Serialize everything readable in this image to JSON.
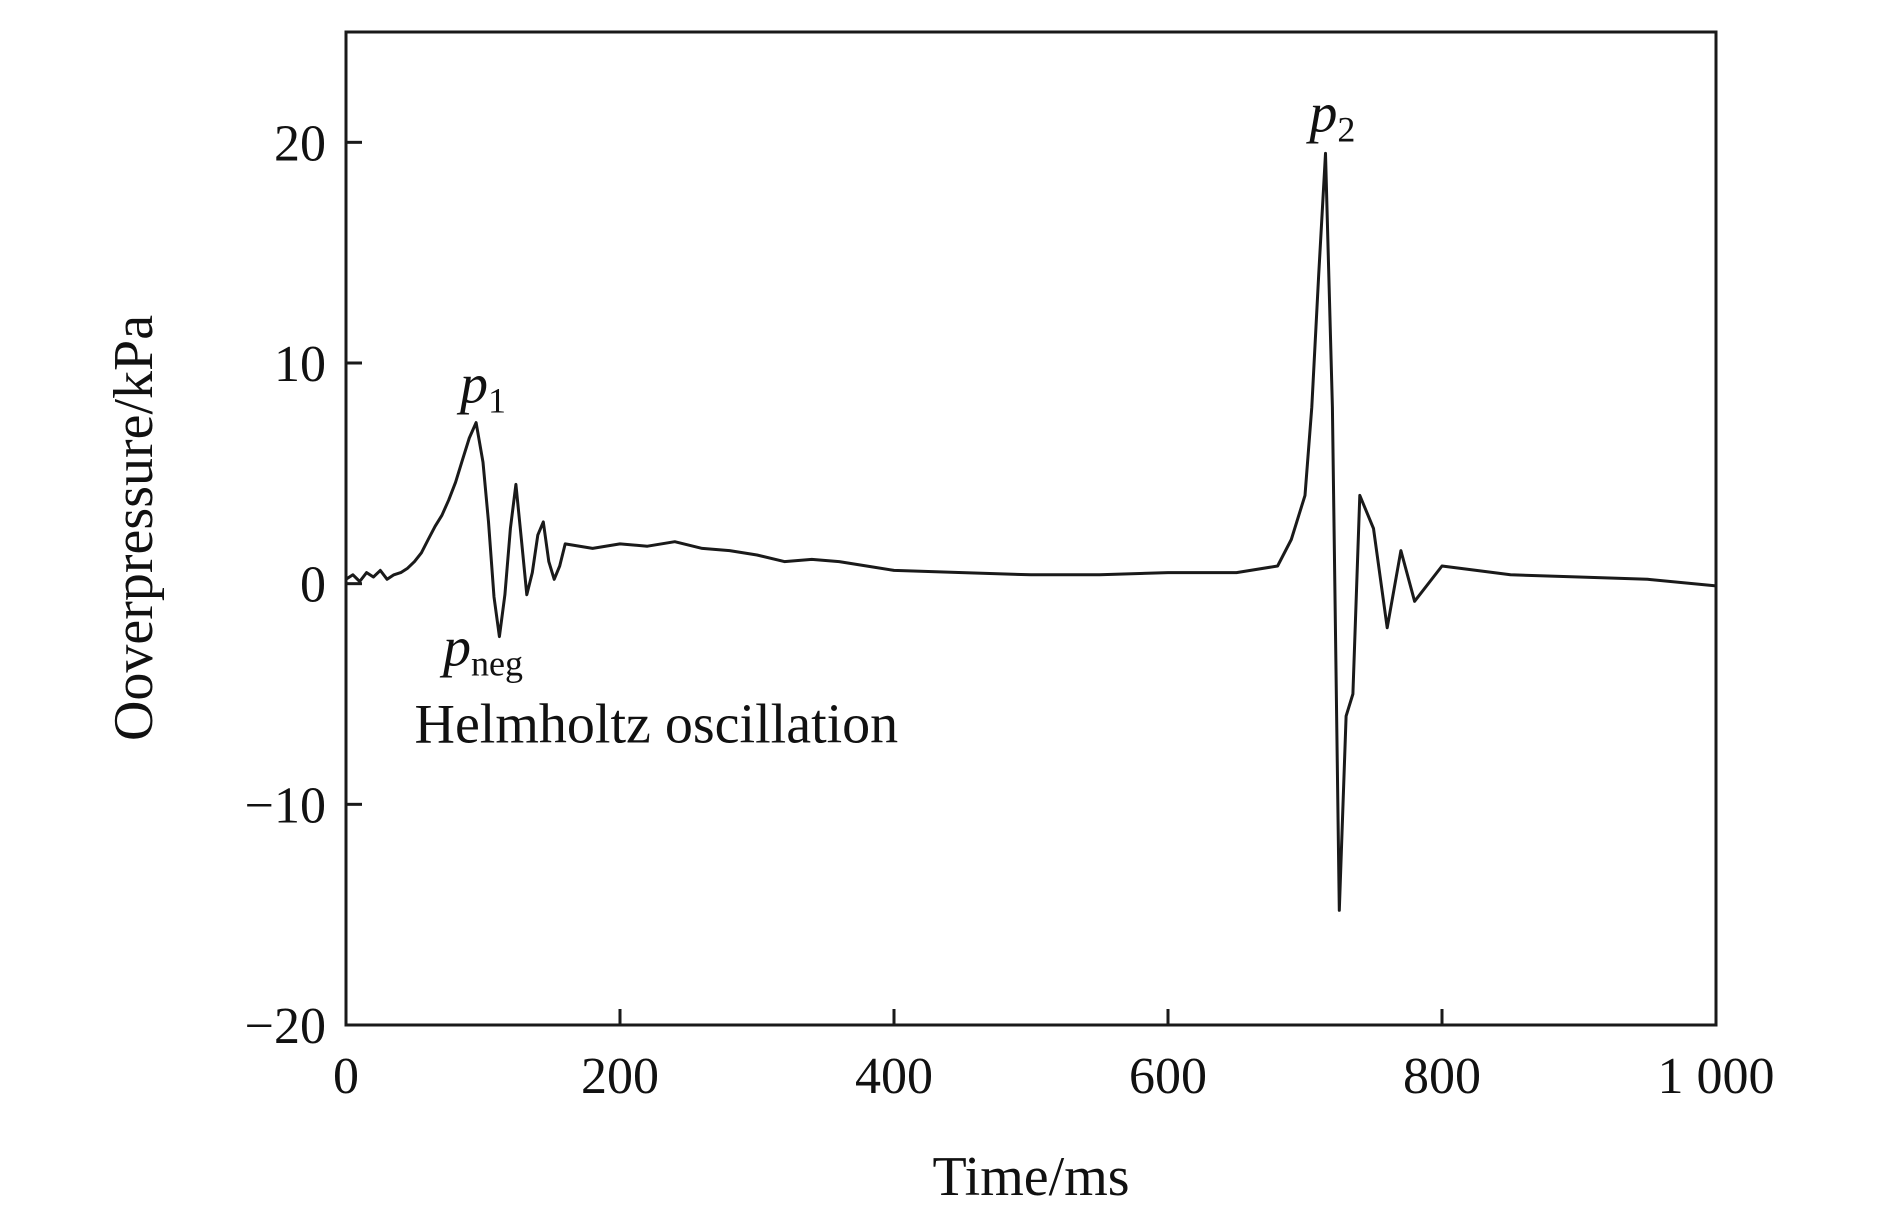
{
  "chart_data": {
    "type": "line",
    "title": "",
    "xlabel": "Time/ms",
    "ylabel": "Ooverpressure/kPa",
    "xlim": [
      0,
      1000
    ],
    "ylim": [
      -20,
      25
    ],
    "x_ticks": [
      0,
      200,
      400,
      600,
      800,
      1000
    ],
    "x_tick_labels": [
      "0",
      "200",
      "400",
      "600",
      "800",
      "1 000"
    ],
    "y_ticks": [
      -20,
      -10,
      0,
      10,
      20
    ],
    "y_tick_labels": [
      "−20",
      "−10",
      "0",
      "10",
      "20"
    ],
    "grid": false,
    "legend": "none",
    "line_color": "#1a1a1a",
    "series": [
      {
        "x": [
          0,
          5,
          10,
          15,
          20,
          25,
          30,
          35,
          40,
          45,
          50,
          55,
          60,
          65,
          70,
          75,
          80,
          85,
          90,
          95,
          100,
          104,
          108,
          112,
          116,
          120,
          124,
          128,
          132,
          136,
          140,
          144,
          148,
          152,
          156,
          160,
          180,
          200,
          220,
          240,
          260,
          280,
          300,
          320,
          340,
          360,
          380,
          400,
          450,
          500,
          550,
          600,
          650,
          680,
          690,
          700,
          705,
          710,
          715,
          720,
          725,
          730,
          735,
          740,
          750,
          760,
          770,
          780,
          800,
          850,
          900,
          950,
          1000
        ],
        "y": [
          0.2,
          0.4,
          0.1,
          0.5,
          0.3,
          0.6,
          0.2,
          0.4,
          0.5,
          0.7,
          1.0,
          1.4,
          2.0,
          2.6,
          3.1,
          3.8,
          4.6,
          5.6,
          6.6,
          7.3,
          5.5,
          2.8,
          -0.6,
          -2.4,
          -0.5,
          2.5,
          4.5,
          2.0,
          -0.5,
          0.5,
          2.2,
          2.8,
          1.0,
          0.2,
          0.8,
          1.8,
          1.6,
          1.8,
          1.7,
          1.9,
          1.6,
          1.5,
          1.3,
          1.0,
          1.1,
          1.0,
          0.8,
          0.6,
          0.5,
          0.4,
          0.4,
          0.5,
          0.5,
          0.8,
          2.0,
          4.0,
          8.0,
          14.0,
          19.5,
          8.0,
          -14.8,
          -6.0,
          -5.0,
          4.0,
          2.5,
          -2.0,
          1.5,
          -0.8,
          0.8,
          0.4,
          0.3,
          0.2,
          -0.1
        ]
      }
    ],
    "annotations": [
      {
        "main": "p",
        "sub": "1",
        "x": 100,
        "y": 8.2
      },
      {
        "main": "p",
        "sub": "neg",
        "x": 100,
        "y": -3.7
      },
      {
        "main": "p",
        "sub": "2",
        "x": 720,
        "y": 20.5
      },
      {
        "text": "Helmholtz oscillation",
        "x": 50,
        "y": -7.2
      }
    ]
  }
}
